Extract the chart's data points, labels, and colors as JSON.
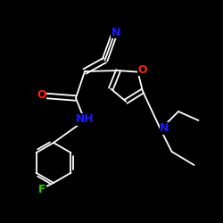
{
  "background": "#000000",
  "bond_color": "#ffffff",
  "atom_colors": {
    "N": "#1a1aff",
    "O": "#ff2200",
    "F": "#33cc00",
    "C": "#ffffff",
    "NH": "#1a1aff"
  },
  "font_size": 9,
  "lw": 1.3
}
